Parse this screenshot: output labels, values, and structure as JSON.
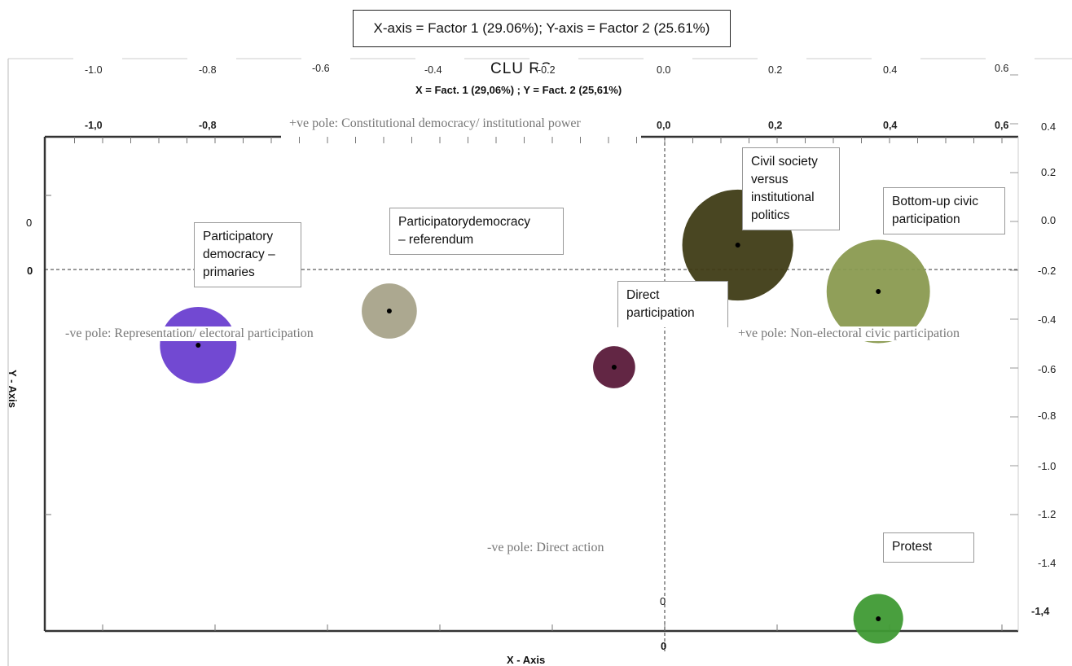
{
  "header": {
    "caption": "X-axis = Factor 1 (29.06%); Y-axis = Factor 2 (25.61%)"
  },
  "chart_data": {
    "type": "scatter",
    "title": "CLU    RS",
    "subtitle": "X = Fact. 1 (29,06%) ; Y = Fact. 2 (25,61%)",
    "xlabel": "X - Axis",
    "ylabel": "Y - Axis",
    "xlim": [
      -1.1,
      0.6
    ],
    "ylim": [
      -1.5,
      0.4
    ],
    "top_ticks_outer": [
      "-1.0",
      "-0.8",
      "-0.6",
      "-0.4",
      "-0.2",
      "0.0",
      "0.2",
      "0.4",
      "0.6"
    ],
    "top_ticks_inner": [
      "-1,0",
      "-0,8",
      "0,0",
      "0,2",
      "0,4",
      "0,6"
    ],
    "right_ticks": [
      "0.4",
      "0.2",
      "0.0",
      "-0.2",
      "-0.4",
      "-0.6",
      "-0.8",
      "-1.0",
      "-1.2",
      "-1.4",
      "-1,4"
    ],
    "zero_labels": [
      "0",
      "0",
      "0",
      "0"
    ],
    "poles": {
      "top": "+ve pole: Constitutional democracy/ institutional power",
      "left": "-ve pole: Representation/ electoral participation",
      "right": "+ve pole: Non-electoral civic participation",
      "bottom": "-ve pole: Direct action"
    },
    "points": [
      {
        "name": "Participatory democracy – primaries",
        "label_lines": [
          "Participatory",
          "democracy –",
          "primaries"
        ],
        "x": -0.83,
        "y": -0.31,
        "size": 1.0,
        "color": "#6a3fd0"
      },
      {
        "name": "Participatory democracy – referendum",
        "label_lines": [
          "Participatorydemocracy",
          "– referendum"
        ],
        "x": -0.49,
        "y": -0.17,
        "size": 0.72,
        "color": "#a8a38a"
      },
      {
        "name": "Direct participation",
        "label_lines": [
          "Direct",
          "participation"
        ],
        "x": -0.09,
        "y": -0.4,
        "size": 0.55,
        "color": "#5a1a3a"
      },
      {
        "name": "Civil society versus institutional politics",
        "label_lines": [
          "Civil society",
          "versus",
          "institutional",
          "politics"
        ],
        "x": 0.13,
        "y": 0.1,
        "size": 1.45,
        "color": "#3f3c16"
      },
      {
        "name": "Bottom-up civic participation",
        "label_lines": [
          "Bottom-up civic",
          "participation"
        ],
        "x": 0.38,
        "y": -0.09,
        "size": 1.35,
        "color": "#8a9a50"
      },
      {
        "name": "Protest",
        "label_lines": [
          "Protest"
        ],
        "x": 0.38,
        "y": -1.43,
        "size": 0.65,
        "color": "#3f9a34"
      }
    ]
  }
}
